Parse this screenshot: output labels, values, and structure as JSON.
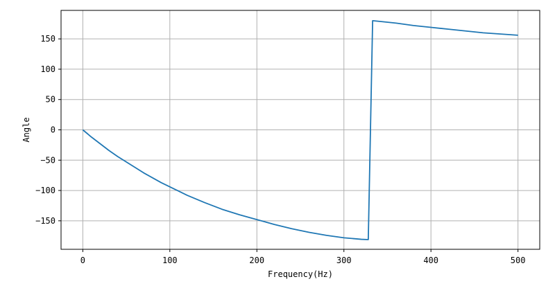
{
  "chart_data": {
    "type": "line",
    "title": "",
    "xlabel": "Frequency(Hz)",
    "ylabel": "Angle",
    "xlim": [
      -25,
      525
    ],
    "ylim": [
      -197,
      197
    ],
    "grid": true,
    "line_color": "#1f77b4",
    "x_ticks": [
      0,
      100,
      200,
      300,
      400,
      500
    ],
    "x_tick_labels": [
      "0",
      "100",
      "200",
      "300",
      "400",
      "500"
    ],
    "y_ticks": [
      150,
      100,
      50,
      0,
      -50,
      -100,
      -150
    ],
    "y_tick_labels": [
      "150",
      "100",
      "50",
      "0",
      "−50",
      "−100",
      "−150"
    ],
    "series": [
      {
        "x": [
          0,
          5,
          10,
          20,
          30,
          40,
          50,
          60,
          70,
          80,
          90,
          100,
          120,
          140,
          160,
          180,
          200,
          220,
          240,
          260,
          280,
          300,
          320,
          328,
          333,
          340,
          360,
          380,
          400,
          420,
          440,
          460,
          480,
          500
        ],
        "y": [
          0,
          -6,
          -12,
          -23,
          -34,
          -44,
          -53,
          -62,
          -71,
          -79,
          -87,
          -94,
          -108,
          -120,
          -131,
          -140,
          -148,
          -156,
          -163,
          -169,
          -174,
          -178,
          -180.5,
          -181,
          180,
          179,
          176,
          172,
          169,
          166,
          163,
          160,
          158,
          156
        ]
      }
    ]
  }
}
